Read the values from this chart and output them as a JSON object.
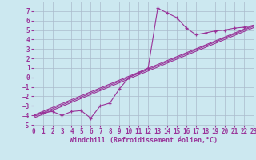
{
  "bg_color": "#cce8f0",
  "grid_color": "#aabbcc",
  "line_color": "#993399",
  "marker_color": "#993399",
  "xlim": [
    0,
    23
  ],
  "ylim": [
    -5,
    8
  ],
  "xlabel": "Windchill (Refroidissement éolien,°C)",
  "yticks": [
    -5,
    -4,
    -3,
    -2,
    -1,
    0,
    1,
    2,
    3,
    4,
    5,
    6,
    7
  ],
  "xticks": [
    0,
    1,
    2,
    3,
    4,
    5,
    6,
    7,
    8,
    9,
    10,
    11,
    12,
    13,
    14,
    15,
    16,
    17,
    18,
    19,
    20,
    21,
    22,
    23
  ],
  "curve1_x": [
    0,
    1,
    2,
    3,
    4,
    5,
    6,
    7,
    8,
    9,
    10,
    11,
    12,
    13,
    14,
    15,
    16,
    17,
    18,
    19,
    20,
    21,
    22,
    23
  ],
  "curve1_y": [
    -4.0,
    -3.7,
    -3.6,
    -4.0,
    -3.6,
    -3.5,
    -4.3,
    -3.0,
    -2.7,
    -1.2,
    0.0,
    0.5,
    1.0,
    7.3,
    6.8,
    6.3,
    5.2,
    4.5,
    4.7,
    4.9,
    5.0,
    5.2,
    5.3,
    5.5
  ],
  "line1_x": [
    0,
    23
  ],
  "line1_y": [
    -4.0,
    5.5
  ],
  "line2_x": [
    0,
    23
  ],
  "line2_y": [
    -4.15,
    5.4
  ],
  "line3_x": [
    0,
    23
  ],
  "line3_y": [
    -4.3,
    5.25
  ]
}
